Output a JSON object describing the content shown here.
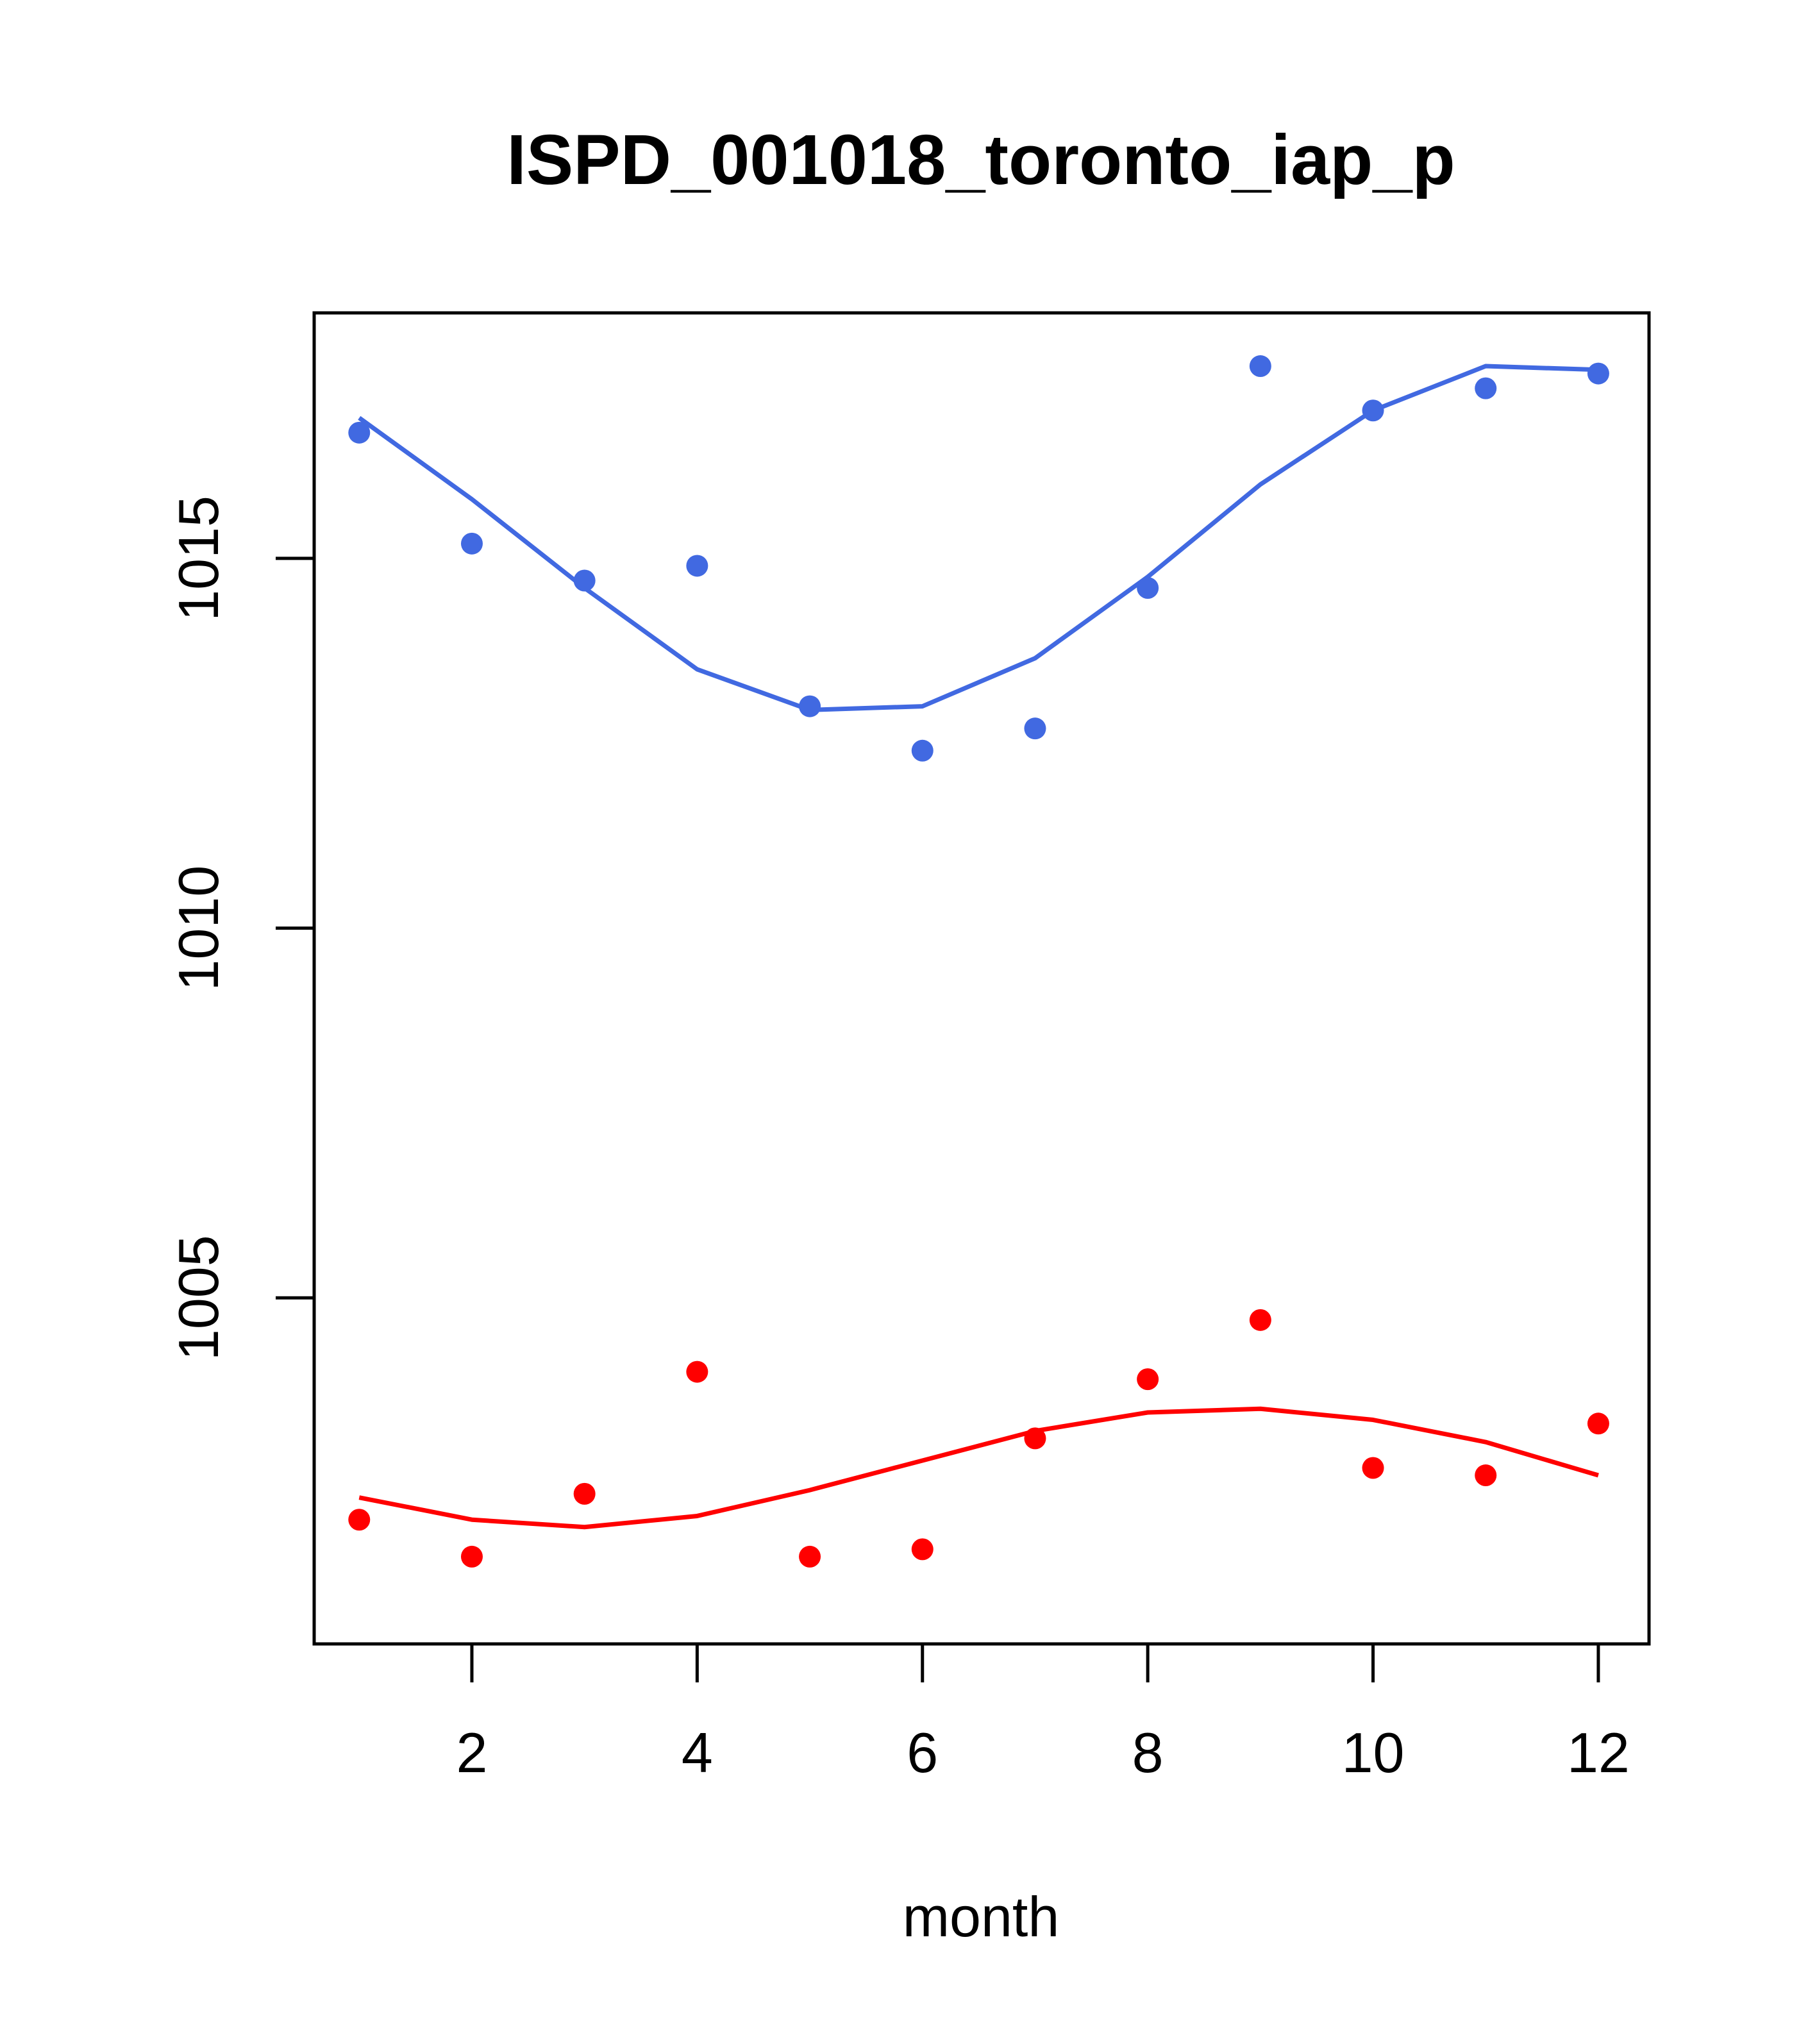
{
  "chart_data": {
    "type": "scatter",
    "title": "ISPD_001018_toronto_iap_p",
    "xlabel": "month",
    "ylabel": "",
    "xlim": [
      0.6,
      12.45
    ],
    "ylim": [
      1000.32,
      1018.32
    ],
    "x_ticks": [
      2,
      4,
      6,
      8,
      10,
      12
    ],
    "y_ticks": [
      1005,
      1010,
      1015
    ],
    "grid": false,
    "legend": "none",
    "series": [
      {
        "color": "#4169E1",
        "points_x": [
          1,
          2,
          3,
          4,
          5,
          6,
          7,
          8,
          9,
          10,
          11,
          12
        ],
        "points_y": [
          1016.7,
          1015.2,
          1014.7,
          1014.9,
          1013.0,
          1012.4,
          1012.7,
          1014.6,
          1017.6,
          1017.0,
          1017.3,
          1017.5
        ],
        "line_y": [
          1016.9,
          1015.8,
          1014.6,
          1013.5,
          1012.95,
          1013.0,
          1013.65,
          1014.75,
          1016.0,
          1017.0,
          1017.6,
          1017.55
        ]
      },
      {
        "color": "#FF0000",
        "points_x": [
          1,
          2,
          3,
          4,
          5,
          6,
          7,
          8,
          9,
          10,
          11,
          12
        ],
        "points_y": [
          1002.0,
          1001.5,
          1002.35,
          1004.0,
          1001.5,
          1001.6,
          1003.1,
          1003.9,
          1004.7,
          1002.7,
          1002.6,
          1003.3
        ],
        "line_y": [
          1002.3,
          1002.0,
          1001.9,
          1002.05,
          1002.4,
          1002.8,
          1003.2,
          1003.45,
          1003.5,
          1003.35,
          1003.05,
          1002.6
        ]
      }
    ]
  }
}
